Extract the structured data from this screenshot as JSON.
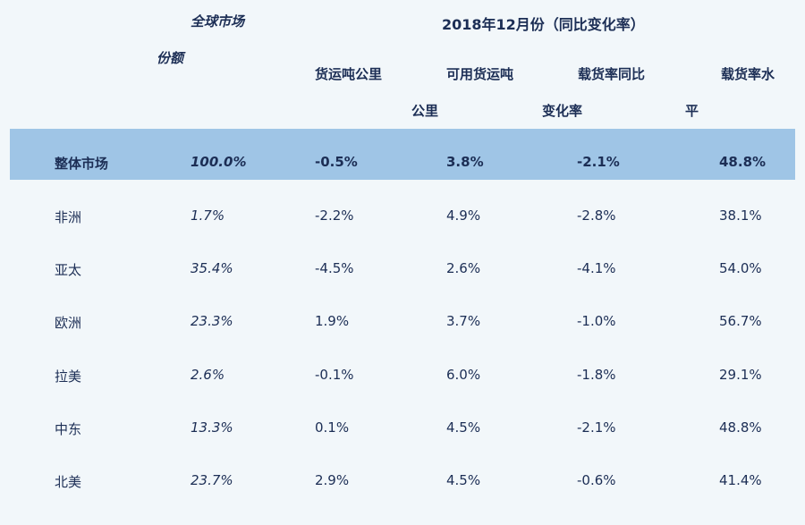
{
  "header": {
    "market_share_line1": "全球市场",
    "market_share_line2": "份额",
    "title": "2018年12月份（同比变化率）",
    "col_rtk_line1": "货运吨公里",
    "col_atk_line1": "可用货运吨",
    "col_atk_line2": "公里",
    "col_lf_change_line1": "载货率同比",
    "col_lf_change_line2": "变化率",
    "col_lf_level_line1": "载货率水",
    "col_lf_level_line2": "平"
  },
  "rows": [
    {
      "region": "整体市场",
      "share": "100.0%",
      "rtk": "-0.5%",
      "atk": "3.8%",
      "lf_change": "-2.1%",
      "lf_level": "48.8%"
    },
    {
      "region": "非洲",
      "share": "1.7%",
      "rtk": "-2.2%",
      "atk": "4.9%",
      "lf_change": "-2.8%",
      "lf_level": "38.1%"
    },
    {
      "region": "亚太",
      "share": "35.4%",
      "rtk": "-4.5%",
      "atk": "2.6%",
      "lf_change": "-4.1%",
      "lf_level": "54.0%"
    },
    {
      "region": "欧洲",
      "share": "23.3%",
      "rtk": "1.9%",
      "atk": "3.7%",
      "lf_change": "-1.0%",
      "lf_level": "56.7%"
    },
    {
      "region": "拉美",
      "share": "2.6%",
      "rtk": "-0.1%",
      "atk": "6.0%",
      "lf_change": "-1.8%",
      "lf_level": "29.1%"
    },
    {
      "region": "中东",
      "share": "13.3%",
      "rtk": "0.1%",
      "atk": "4.5%",
      "lf_change": "-2.1%",
      "lf_level": "48.8%"
    },
    {
      "region": "北美",
      "share": "23.7%",
      "rtk": "2.9%",
      "atk": "4.5%",
      "lf_change": "-0.6%",
      "lf_level": "41.4%"
    }
  ],
  "colors": {
    "background": "#f2f7fa",
    "total_band": "#9fc5e6",
    "text": "#1c2e55"
  }
}
